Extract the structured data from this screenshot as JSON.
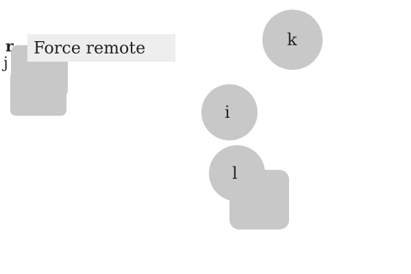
{
  "colors": {
    "background": "#ffffff",
    "node_fill": "#c8c8c8",
    "tooltip_fill": "#eeeeee",
    "text": "#222222"
  },
  "nodes": [
    {
      "id": "k",
      "label": "k",
      "shape": "circle"
    },
    {
      "id": "i",
      "label": "i",
      "shape": "circle"
    },
    {
      "id": "l",
      "label": "l",
      "shape": "circle"
    },
    {
      "id": "box-left",
      "label": "",
      "shape": "rounded-rect"
    },
    {
      "id": "box-bottom",
      "label": "",
      "shape": "rounded-rect"
    }
  ],
  "fragments": {
    "top_left_1": "r",
    "top_left_2": "j"
  },
  "tooltip": {
    "text": "Force remote"
  }
}
